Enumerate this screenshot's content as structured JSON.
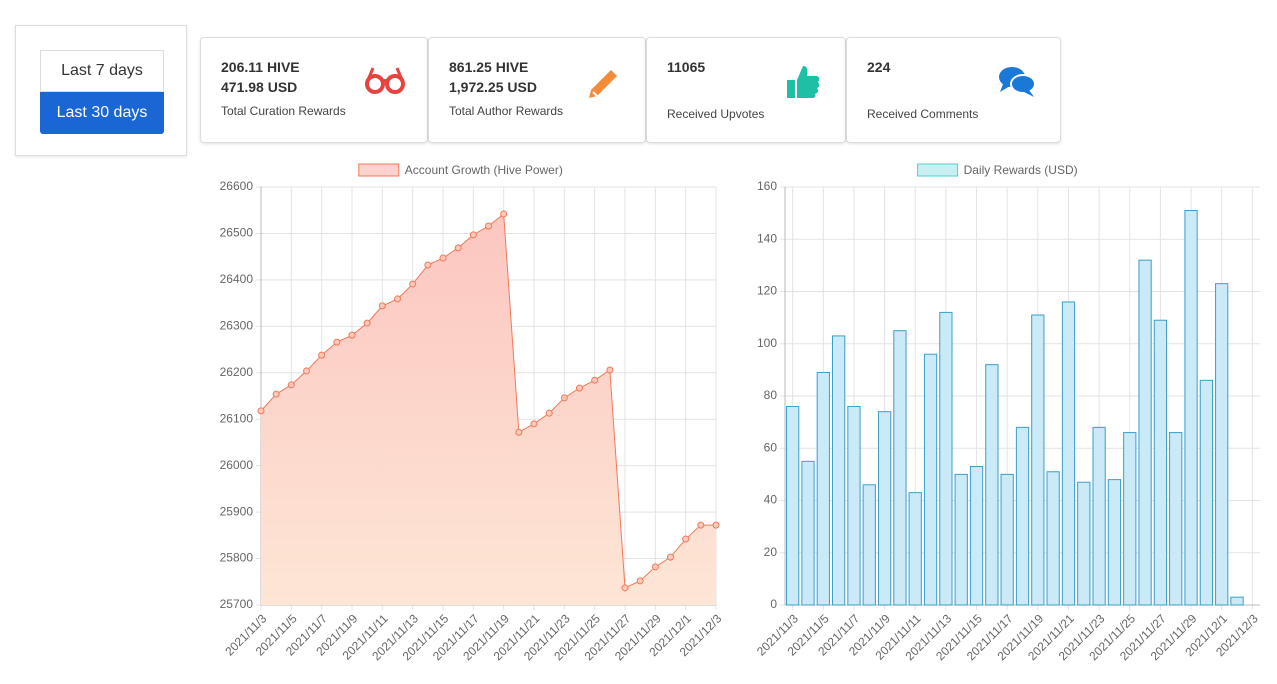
{
  "buttons": [
    "Last 7 days",
    "Last 30 days"
  ],
  "cards": [
    {
      "lines": [
        "206.11 HIVE",
        "471.98 USD"
      ],
      "label": "Total Curation Rewards"
    },
    {
      "lines": [
        "861.25 HIVE",
        "1,972.25 USD"
      ],
      "label": "Total Author Rewards"
    },
    {
      "lines": [
        "11065"
      ],
      "label": "Received Upvotes"
    },
    {
      "lines": [
        "224"
      ],
      "label": "Received Comments"
    }
  ],
  "chart_data": [
    {
      "type": "line",
      "fill": true,
      "categories": [
        "2021/11/3",
        null,
        "2021/11/5",
        null,
        "2021/11/7",
        null,
        "2021/11/9",
        null,
        "2021/11/11",
        null,
        "2021/11/13",
        null,
        "2021/11/15",
        null,
        "2021/11/17",
        null,
        "2021/11/19",
        null,
        "2021/11/21",
        null,
        "2021/11/23",
        null,
        "2021/11/25",
        null,
        "2021/11/27",
        null,
        "2021/11/29",
        null,
        "2021/12/1",
        null,
        "2021/12/3"
      ],
      "series": [
        {
          "name": "Account Growth (Hive Power)",
          "color": "#f0795a",
          "values": [
            26118,
            26154,
            26174,
            26204,
            26238,
            26266,
            26281,
            26307,
            26344,
            26359,
            26391,
            26432,
            26447,
            26469,
            26497,
            26516,
            26542,
            26072,
            26090,
            26113,
            26146,
            26167,
            26184,
            26206,
            25737,
            25752,
            25782,
            25803,
            25842,
            25872,
            25872
          ]
        }
      ],
      "ylim": [
        25700,
        26600
      ],
      "yticks": [
        25700,
        25800,
        25900,
        26000,
        26100,
        26200,
        26300,
        26400,
        26500,
        26600
      ],
      "grid": true,
      "legend": "top"
    },
    {
      "type": "bar",
      "categories": [
        "2021/11/3",
        null,
        "2021/11/5",
        null,
        "2021/11/7",
        null,
        "2021/11/9",
        null,
        "2021/11/11",
        null,
        "2021/11/13",
        null,
        "2021/11/15",
        null,
        "2021/11/17",
        null,
        "2021/11/19",
        null,
        "2021/11/21",
        null,
        "2021/11/23",
        null,
        "2021/11/25",
        null,
        "2021/11/27",
        null,
        "2021/11/29",
        null,
        "2021/12/1",
        null,
        "2021/12/3"
      ],
      "series": [
        {
          "name": "Daily Rewards (USD)",
          "color": "#3a9fc9",
          "values": [
            76,
            55,
            89,
            103,
            76,
            46,
            74,
            105,
            43,
            96,
            112,
            50,
            53,
            92,
            50,
            68,
            111,
            51,
            116,
            47,
            68,
            48,
            66,
            132,
            109,
            66,
            151,
            86,
            123,
            3,
            0
          ]
        }
      ],
      "ylim": [
        0,
        160
      ],
      "yticks": [
        0,
        20,
        40,
        60,
        80,
        100,
        120,
        140,
        160
      ],
      "grid": true,
      "legend": "top"
    }
  ]
}
